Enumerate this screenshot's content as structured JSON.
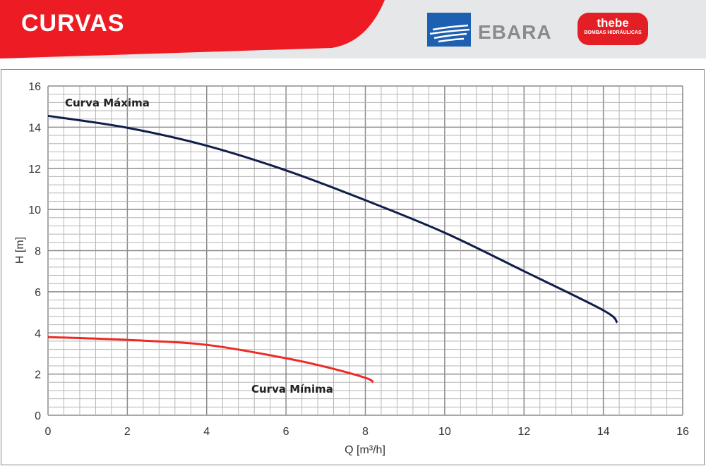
{
  "header": {
    "title": "CURVAS",
    "logo_ebara": "EBARA",
    "logo_thebe": "thebe",
    "logo_thebe_sub": "BOMBAS HIDRÁULICAS"
  },
  "colors": {
    "red": "#ed1c24",
    "navy": "#0f1e4a",
    "curve_min": "#ee2a24"
  },
  "chart_data": {
    "type": "line",
    "xlabel": "Q [m³/h]",
    "ylabel": "H [m]",
    "xlim": [
      0,
      16
    ],
    "ylim": [
      0,
      16
    ],
    "xticks": [
      0,
      2,
      4,
      6,
      8,
      10,
      12,
      14,
      16
    ],
    "yticks": [
      0,
      2,
      4,
      6,
      8,
      10,
      12,
      14,
      16
    ],
    "grid": true,
    "series": [
      {
        "name": "Curva Máxima",
        "color": "#0f1e4a",
        "x": [
          0,
          2,
          4,
          6,
          8,
          10,
          12,
          14,
          14.35
        ],
        "y": [
          14.55,
          13.97,
          13.1,
          11.9,
          10.45,
          8.87,
          7.0,
          5.1,
          4.5
        ]
      },
      {
        "name": "Curva Mínima",
        "color": "#ee2a24",
        "x": [
          0,
          2,
          4,
          6,
          7,
          8,
          8.2
        ],
        "y": [
          3.8,
          3.66,
          3.42,
          2.77,
          2.35,
          1.82,
          1.6
        ]
      }
    ]
  }
}
